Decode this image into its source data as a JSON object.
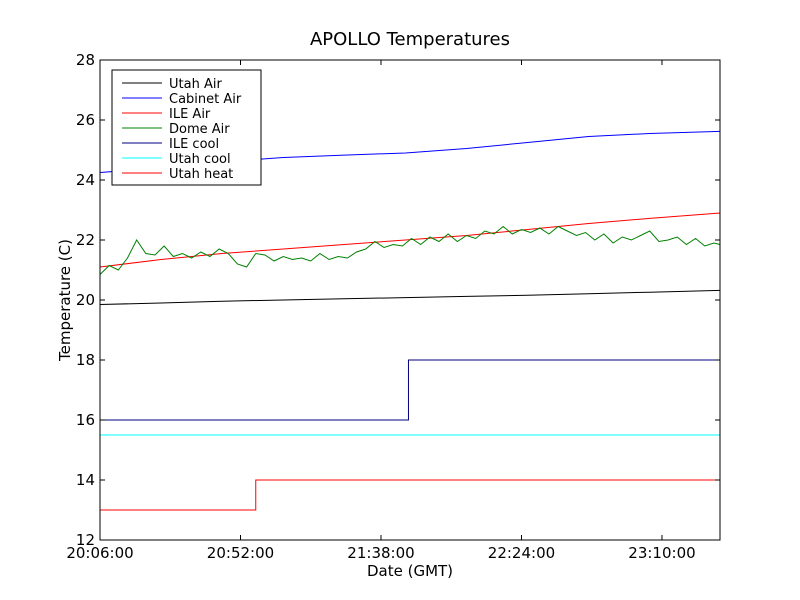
{
  "chart_data": {
    "type": "line",
    "title": "APOLLO Temperatures",
    "xlabel": "Date (GMT)",
    "ylabel": "Temperature (C)",
    "x_unit": "minutes since 20:06:00",
    "xlim": [
      0,
      203
    ],
    "ylim": [
      12,
      28
    ],
    "x_ticks": [
      {
        "value": 0,
        "label": "20:06:00"
      },
      {
        "value": 46,
        "label": "20:52:00"
      },
      {
        "value": 92,
        "label": "21:38:00"
      },
      {
        "value": 138,
        "label": "22:24:00"
      },
      {
        "value": 184,
        "label": "23:10:00"
      }
    ],
    "y_ticks": [
      {
        "value": 12,
        "label": "12"
      },
      {
        "value": 14,
        "label": "14"
      },
      {
        "value": 16,
        "label": "16"
      },
      {
        "value": 18,
        "label": "18"
      },
      {
        "value": 20,
        "label": "20"
      },
      {
        "value": 22,
        "label": "22"
      },
      {
        "value": 24,
        "label": "24"
      },
      {
        "value": 26,
        "label": "26"
      },
      {
        "value": 28,
        "label": "28"
      }
    ],
    "grid": false,
    "legend_position": "top-left",
    "series": [
      {
        "name": "Utah Air",
        "color": "#000000",
        "x": [
          0,
          20,
          40,
          60,
          80,
          100,
          120,
          140,
          160,
          180,
          203
        ],
        "y": [
          19.85,
          19.9,
          19.96,
          20.0,
          20.04,
          20.08,
          20.12,
          20.16,
          20.21,
          20.26,
          20.32
        ]
      },
      {
        "name": "Cabinet Air",
        "color": "#0000ff",
        "x": [
          0,
          20,
          40,
          60,
          80,
          100,
          120,
          140,
          160,
          180,
          203
        ],
        "y": [
          24.25,
          24.4,
          24.6,
          24.75,
          24.83,
          24.9,
          25.05,
          25.25,
          25.45,
          25.55,
          25.62
        ]
      },
      {
        "name": "ILE Air",
        "color": "#ff0000",
        "x": [
          0,
          20,
          40,
          60,
          80,
          100,
          120,
          140,
          160,
          180,
          203
        ],
        "y": [
          21.1,
          21.35,
          21.55,
          21.7,
          21.85,
          22.0,
          22.15,
          22.35,
          22.55,
          22.72,
          22.9
        ]
      },
      {
        "name": "Dome Air",
        "color": "#008000",
        "x": [
          0,
          3,
          6,
          9,
          12,
          15,
          18,
          21,
          24,
          27,
          30,
          33,
          36,
          39,
          42,
          45,
          48,
          51,
          54,
          57,
          60,
          63,
          66,
          69,
          72,
          75,
          78,
          81,
          84,
          87,
          90,
          93,
          96,
          99,
          102,
          105,
          108,
          111,
          114,
          117,
          120,
          123,
          126,
          129,
          132,
          135,
          138,
          141,
          144,
          147,
          150,
          153,
          156,
          159,
          162,
          165,
          168,
          171,
          174,
          177,
          180,
          183,
          186,
          189,
          192,
          195,
          198,
          201,
          203
        ],
        "y": [
          20.85,
          21.15,
          21.0,
          21.4,
          22.0,
          21.55,
          21.5,
          21.8,
          21.45,
          21.55,
          21.4,
          21.6,
          21.45,
          21.7,
          21.55,
          21.2,
          21.1,
          21.55,
          21.5,
          21.3,
          21.45,
          21.35,
          21.4,
          21.3,
          21.55,
          21.35,
          21.45,
          21.4,
          21.6,
          21.7,
          21.95,
          21.75,
          21.85,
          21.8,
          22.05,
          21.85,
          22.1,
          21.95,
          22.2,
          21.95,
          22.15,
          22.05,
          22.3,
          22.2,
          22.45,
          22.2,
          22.35,
          22.25,
          22.4,
          22.2,
          22.45,
          22.3,
          22.15,
          22.25,
          22.0,
          22.2,
          21.9,
          22.1,
          22.0,
          22.15,
          22.3,
          21.95,
          22.0,
          22.1,
          21.85,
          22.05,
          21.8,
          21.9,
          21.85
        ]
      },
      {
        "name": "ILE cool",
        "color": "#000080",
        "x": [
          0,
          101,
          101,
          203
        ],
        "y": [
          16.0,
          16.0,
          18.0,
          18.0
        ]
      },
      {
        "name": "Utah cool",
        "color": "#00ffff",
        "x": [
          0,
          0,
          203
        ],
        "y": [
          14.5,
          15.5,
          15.5
        ]
      },
      {
        "name": "Utah heat",
        "color": "#ff0000",
        "x": [
          0,
          51,
          51,
          203
        ],
        "y": [
          13.0,
          13.0,
          14.0,
          14.0
        ]
      }
    ]
  }
}
